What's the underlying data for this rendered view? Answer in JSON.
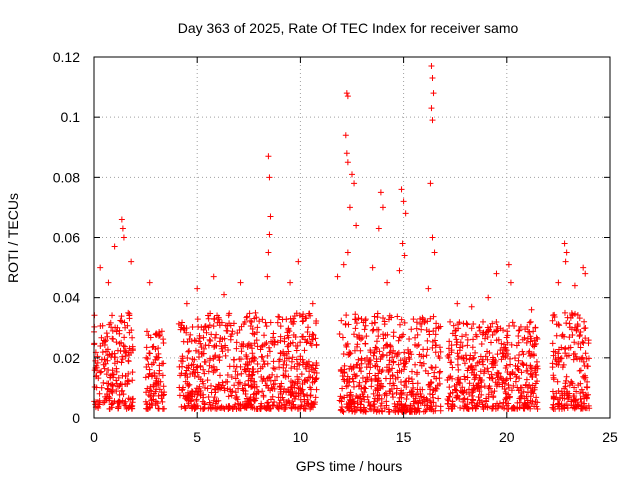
{
  "chart_data": {
    "type": "scatter",
    "title": "Day 363 of 2025, Rate Of TEC Index for receiver samo",
    "xlabel": "GPS time / hours",
    "ylabel": "ROTI / TECUs",
    "xlim": [
      0,
      25
    ],
    "ylim": [
      0,
      0.12
    ],
    "xticks": [
      0,
      5,
      10,
      15,
      20,
      25
    ],
    "xtick_labels": [
      "0",
      "5",
      "10",
      "15",
      "20",
      "25"
    ],
    "yticks": [
      0,
      0.02,
      0.04,
      0.06,
      0.08,
      0.1,
      0.12
    ],
    "ytick_labels": [
      "0",
      "0.02",
      "0.04",
      "0.06",
      "0.08",
      "0.1",
      "0.12"
    ],
    "grid": true,
    "marker": "+",
    "color": "#ff0000",
    "series": [
      {
        "name": "ROTI",
        "segments": [
          {
            "start": 0.0,
            "end": 1.9,
            "base": 0.003,
            "typical_max": 0.035
          },
          {
            "start": 2.5,
            "end": 3.4,
            "base": 0.003,
            "typical_max": 0.03
          },
          {
            "start": 4.1,
            "end": 10.8,
            "base": 0.003,
            "typical_max": 0.035
          },
          {
            "start": 11.9,
            "end": 16.8,
            "base": 0.002,
            "typical_max": 0.035
          },
          {
            "start": 17.1,
            "end": 21.5,
            "base": 0.003,
            "typical_max": 0.032
          },
          {
            "start": 22.2,
            "end": 24.0,
            "base": 0.003,
            "typical_max": 0.035
          }
        ],
        "peaks": [
          {
            "x": 0.3,
            "y": 0.05
          },
          {
            "x": 0.7,
            "y": 0.045
          },
          {
            "x": 1.0,
            "y": 0.057
          },
          {
            "x": 1.35,
            "y": 0.066
          },
          {
            "x": 1.4,
            "y": 0.063
          },
          {
            "x": 1.45,
            "y": 0.06
          },
          {
            "x": 1.8,
            "y": 0.052
          },
          {
            "x": 2.7,
            "y": 0.045
          },
          {
            "x": 4.5,
            "y": 0.038
          },
          {
            "x": 5.0,
            "y": 0.043
          },
          {
            "x": 5.8,
            "y": 0.047
          },
          {
            "x": 6.3,
            "y": 0.041
          },
          {
            "x": 7.1,
            "y": 0.045
          },
          {
            "x": 8.45,
            "y": 0.087
          },
          {
            "x": 8.5,
            "y": 0.08
          },
          {
            "x": 8.55,
            "y": 0.067
          },
          {
            "x": 8.5,
            "y": 0.061
          },
          {
            "x": 8.45,
            "y": 0.055
          },
          {
            "x": 8.4,
            "y": 0.047
          },
          {
            "x": 9.5,
            "y": 0.045
          },
          {
            "x": 9.9,
            "y": 0.052
          },
          {
            "x": 10.6,
            "y": 0.038
          },
          {
            "x": 11.8,
            "y": 0.047
          },
          {
            "x": 12.25,
            "y": 0.108
          },
          {
            "x": 12.3,
            "y": 0.107
          },
          {
            "x": 12.2,
            "y": 0.094
          },
          {
            "x": 12.25,
            "y": 0.088
          },
          {
            "x": 12.3,
            "y": 0.085
          },
          {
            "x": 12.5,
            "y": 0.081
          },
          {
            "x": 12.6,
            "y": 0.078
          },
          {
            "x": 12.4,
            "y": 0.07
          },
          {
            "x": 12.7,
            "y": 0.064
          },
          {
            "x": 12.3,
            "y": 0.055
          },
          {
            "x": 12.1,
            "y": 0.051
          },
          {
            "x": 13.5,
            "y": 0.05
          },
          {
            "x": 13.9,
            "y": 0.075
          },
          {
            "x": 14.0,
            "y": 0.07
          },
          {
            "x": 13.8,
            "y": 0.063
          },
          {
            "x": 14.2,
            "y": 0.045
          },
          {
            "x": 14.9,
            "y": 0.076
          },
          {
            "x": 15.0,
            "y": 0.072
          },
          {
            "x": 15.1,
            "y": 0.068
          },
          {
            "x": 14.95,
            "y": 0.058
          },
          {
            "x": 15.05,
            "y": 0.054
          },
          {
            "x": 14.8,
            "y": 0.049
          },
          {
            "x": 16.35,
            "y": 0.117
          },
          {
            "x": 16.4,
            "y": 0.113
          },
          {
            "x": 16.45,
            "y": 0.108
          },
          {
            "x": 16.35,
            "y": 0.103
          },
          {
            "x": 16.4,
            "y": 0.099
          },
          {
            "x": 16.3,
            "y": 0.078
          },
          {
            "x": 16.4,
            "y": 0.06
          },
          {
            "x": 16.5,
            "y": 0.055
          },
          {
            "x": 16.2,
            "y": 0.043
          },
          {
            "x": 17.6,
            "y": 0.038
          },
          {
            "x": 18.3,
            "y": 0.037
          },
          {
            "x": 19.1,
            "y": 0.04
          },
          {
            "x": 19.5,
            "y": 0.048
          },
          {
            "x": 20.1,
            "y": 0.051
          },
          {
            "x": 20.2,
            "y": 0.045
          },
          {
            "x": 21.2,
            "y": 0.036
          },
          {
            "x": 22.8,
            "y": 0.058
          },
          {
            "x": 22.9,
            "y": 0.055
          },
          {
            "x": 22.85,
            "y": 0.052
          },
          {
            "x": 22.5,
            "y": 0.045
          },
          {
            "x": 23.3,
            "y": 0.044
          },
          {
            "x": 23.7,
            "y": 0.05
          },
          {
            "x": 23.8,
            "y": 0.048
          }
        ]
      }
    ]
  }
}
